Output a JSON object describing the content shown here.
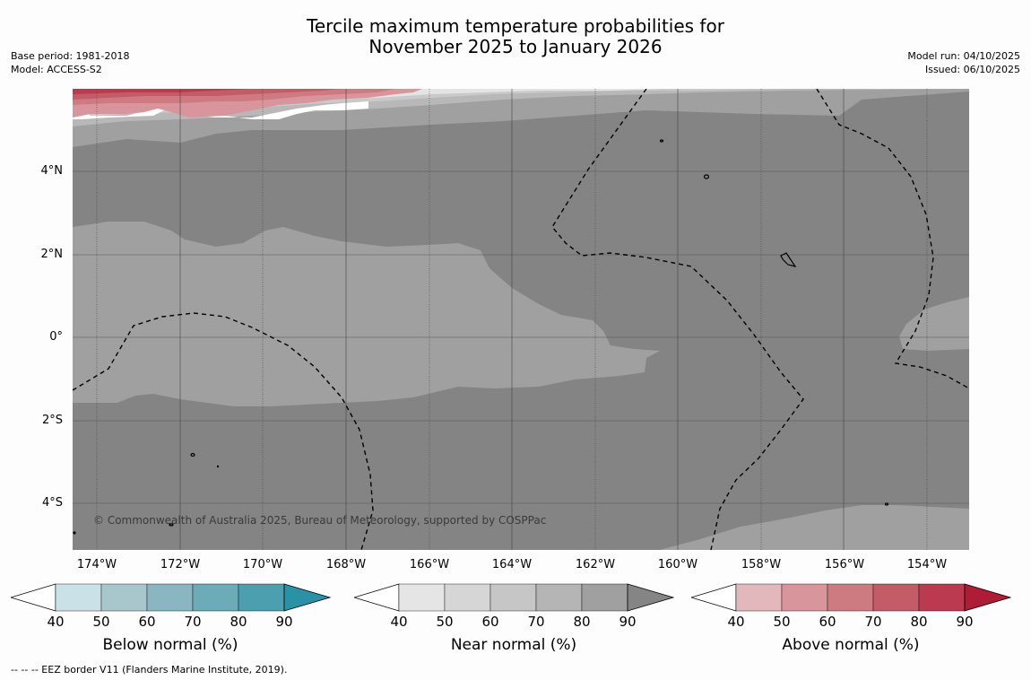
{
  "header": {
    "title_line1": "Tercile maximum temperature probabilities for",
    "title_line2": "November 2025 to January 2026",
    "base_period": "Base period: 1981-2018",
    "model": "Model: ACCESS-S2",
    "model_run": "Model run: 04/10/2025",
    "issued": "Issued: 06/10/2025"
  },
  "map": {
    "lat_labels": [
      "4°N",
      "2°N",
      "0°",
      "2°S",
      "4°S"
    ],
    "lon_labels": [
      "174°W",
      "172°W",
      "170°W",
      "168°W",
      "166°W",
      "164°W",
      "162°W",
      "160°W",
      "158°W",
      "156°W",
      "154°W"
    ],
    "copyright": "© Commonwealth of Australia 2025, Bureau of Meteorology, supported by COSPPac"
  },
  "legend": {
    "below": {
      "title": "Below normal (%)",
      "ticks": [
        "40",
        "50",
        "60",
        "70",
        "80",
        "90"
      ],
      "colors": [
        "#c9e1e7",
        "#a7c7cd",
        "#8ab6c2",
        "#6cabb8",
        "#4c9faf",
        "#2a92a7"
      ]
    },
    "near": {
      "title": "Near normal (%)",
      "ticks": [
        "40",
        "50",
        "60",
        "70",
        "80",
        "90"
      ],
      "colors": [
        "#e5e5e5",
        "#d6d6d6",
        "#c6c6c6",
        "#b5b5b5",
        "#a0a0a0",
        "#858585"
      ]
    },
    "above": {
      "title": "Above normal (%)",
      "ticks": [
        "40",
        "50",
        "60",
        "70",
        "80",
        "90"
      ],
      "colors": [
        "#e3b8bc",
        "#d8959b",
        "#cd7a80",
        "#c45c67",
        "#bb3a4f",
        "#ae1c35"
      ]
    }
  },
  "footer": {
    "eez_note": "--  --  -- EEZ border V11 (Flanders Marine Institute, 2019)."
  }
}
